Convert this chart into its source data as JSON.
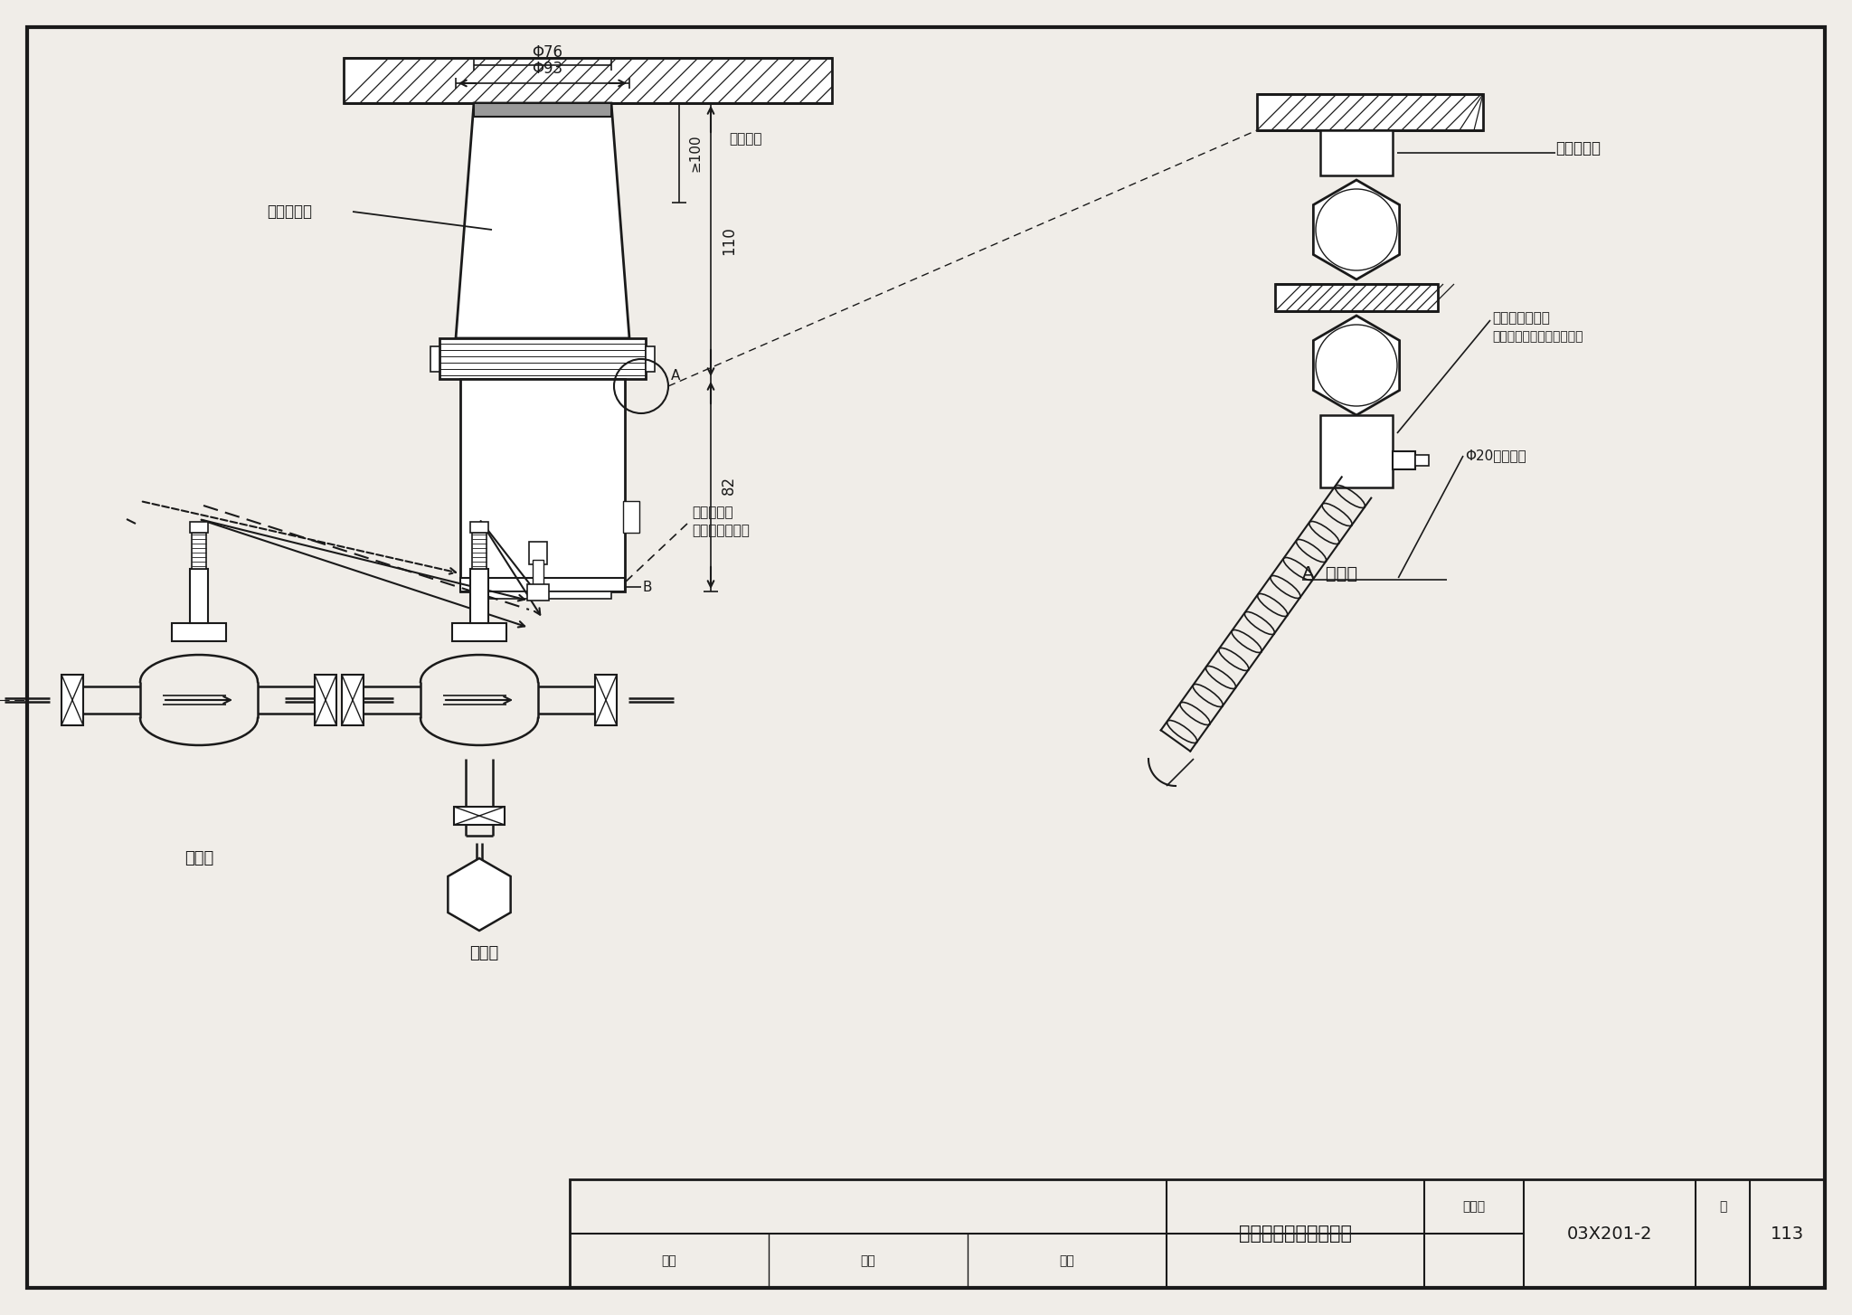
{
  "bg_color": "#f0ede8",
  "line_color": "#1a1a1a",
  "title_text": "阀门执行器安装（一）",
  "atlas_label": "图集号",
  "atlas_value": "03X201-2",
  "page_label": "页",
  "page_value": "113",
  "label_fanmen_zhixingqi": "阀门执行器",
  "label_fanmen_qudongqi": "阀门驱动器",
  "label_jinshu_ruanguan_jietou": "金属软管连接头",
  "label_baokuo": "包括锁紧螺母由安装者自备",
  "label_jinshu_ruanguan": "Φ20金属软管",
  "label_A_fangdatu": "A  放大图",
  "label_chuankong": "穿控制线用",
  "label_jinshu_jietouchu": "金属软管接头处",
  "label_phi93": "Φ93",
  "label_phi76": "Φ76",
  "label_ge100": "≥100",
  "label_110": "110",
  "label_82": "82",
  "label_A": "A",
  "label_B": "B",
  "label_chaizhuangjuli": "拆装距离",
  "label_ertongfa": "二通阀",
  "label_santongfa": "三通阀",
  "shenhe": "审核",
  "jiaodui": "校对",
  "sheji": "设计"
}
